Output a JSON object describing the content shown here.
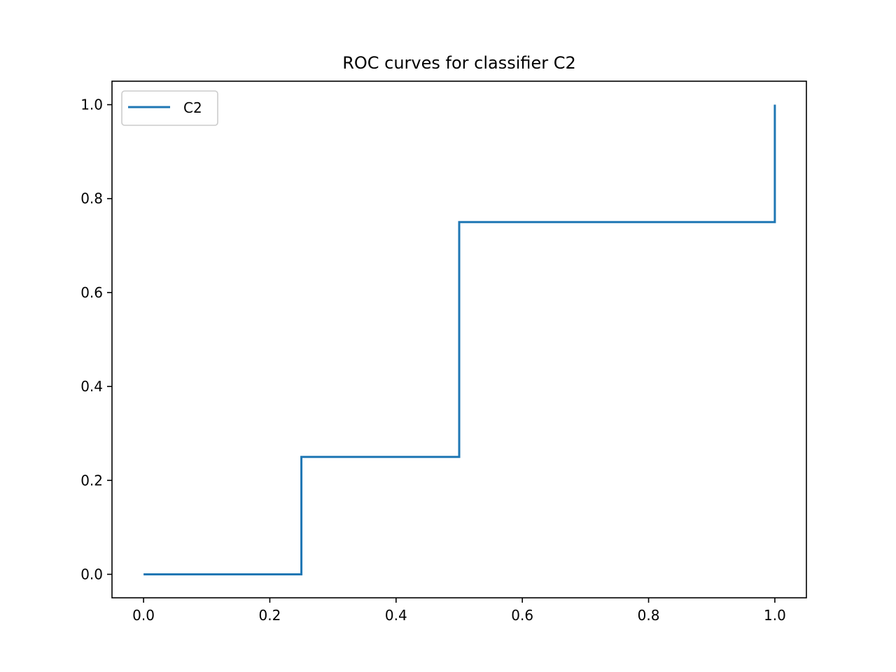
{
  "chart_data": {
    "type": "line",
    "title": "ROC curves for classifier C2",
    "xlabel": "",
    "ylabel": "",
    "xlim": [
      -0.05,
      1.05
    ],
    "ylim": [
      -0.05,
      1.05
    ],
    "x_ticks": [
      "0.0",
      "0.2",
      "0.4",
      "0.6",
      "0.8",
      "1.0"
    ],
    "y_ticks": [
      "0.0",
      "0.2",
      "0.4",
      "0.6",
      "0.8",
      "1.0"
    ],
    "grid": false,
    "legend_position": "top-left",
    "series": [
      {
        "name": "C2",
        "color": "#1f77b4",
        "x": [
          0.0,
          0.25,
          0.25,
          0.5,
          0.5,
          1.0,
          1.0
        ],
        "y": [
          0.0,
          0.0,
          0.25,
          0.25,
          0.75,
          0.75,
          1.0
        ]
      }
    ]
  }
}
